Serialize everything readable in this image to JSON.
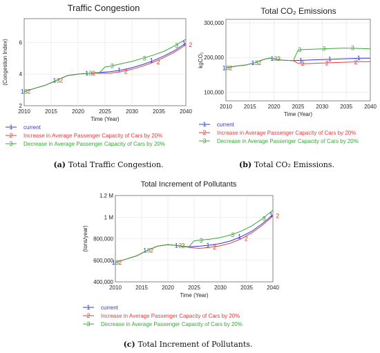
{
  "colors": {
    "current": "#3333dd",
    "increase": "#e83a3a",
    "decrease": "#3aa53a",
    "axis": "#666666",
    "grid": "#e2e2e2"
  },
  "legend": [
    {
      "marker": "1",
      "label": "current",
      "color": "#3333dd"
    },
    {
      "marker": "2",
      "label": "Increase in Average Passenger Capacity of Cars by 20%",
      "color": "#e83a3a"
    },
    {
      "marker": "3",
      "label": "Decrease in Average Passenger Capacity of Cars by 20%",
      "color": "#3aa53a"
    }
  ],
  "captions": {
    "a": {
      "tag": "(a)",
      "text": "Total Traffic Congestion."
    },
    "b": {
      "tag": "(b)",
      "text": "Total CO₂ Emissions."
    },
    "c": {
      "tag": "(c)",
      "text": "Total Increment of Pollutants."
    }
  },
  "chart_data": [
    {
      "id": "a",
      "type": "line",
      "title": "Traffic Congestion",
      "xlabel": "Time (Year)",
      "ylabel": "(Congestion Index)",
      "xlim": [
        2010,
        2040
      ],
      "ylim": [
        2,
        7.5
      ],
      "xticks": [
        2010,
        2015,
        2020,
        2025,
        2030,
        2035,
        2040
      ],
      "yticks": [
        {
          "v": 2,
          "t": "2"
        },
        {
          "v": 4,
          "t": "4"
        },
        {
          "v": 6,
          "t": "6"
        }
      ],
      "grid": true,
      "series": [
        {
          "name": "current",
          "marker": "1",
          "x": [
            2010,
            2012,
            2014,
            2016,
            2018,
            2020,
            2022,
            2024,
            2026,
            2028,
            2030,
            2032,
            2034,
            2036,
            2038,
            2040
          ],
          "y": [
            2.9,
            3.1,
            3.3,
            3.6,
            3.9,
            4.0,
            4.05,
            4.1,
            4.15,
            4.25,
            4.4,
            4.6,
            4.85,
            5.15,
            5.5,
            5.95
          ]
        },
        {
          "name": "Increase in Average Passenger Capacity of Cars by 20%",
          "marker": "2",
          "x": [
            2010,
            2012,
            2014,
            2016,
            2018,
            2020,
            2022,
            2024,
            2026,
            2028,
            2030,
            2032,
            2034,
            2036,
            2038,
            2040
          ],
          "y": [
            2.9,
            3.1,
            3.3,
            3.6,
            3.9,
            4.0,
            4.05,
            4.05,
            4.05,
            4.15,
            4.3,
            4.5,
            4.75,
            5.05,
            5.4,
            5.85
          ]
        },
        {
          "name": "Decrease in Average Passenger Capacity of Cars by 20%",
          "marker": "3",
          "x": [
            2010,
            2012,
            2014,
            2016,
            2018,
            2020,
            2022,
            2024,
            2025,
            2026,
            2028,
            2030,
            2032,
            2034,
            2036,
            2038,
            2040
          ],
          "y": [
            2.9,
            3.1,
            3.3,
            3.6,
            3.9,
            4.0,
            4.05,
            4.1,
            4.45,
            4.5,
            4.65,
            4.8,
            5.0,
            5.2,
            5.45,
            5.8,
            6.2
          ]
        }
      ]
    },
    {
      "id": "b",
      "type": "line",
      "title": "Total CO₂ Emissions",
      "xlabel": "Time (Year)",
      "ylabel": "kgCO₂",
      "xlim": [
        2010,
        2040
      ],
      "ylim": [
        75000,
        310000
      ],
      "xticks": [
        2010,
        2015,
        2020,
        2025,
        2030,
        2035,
        2040
      ],
      "yticks": [
        {
          "v": 100000,
          "t": "100,000"
        },
        {
          "v": 200000,
          "t": "200,000"
        },
        {
          "v": 300000,
          "t": "300,000"
        }
      ],
      "grid": true,
      "series": [
        {
          "name": "current",
          "marker": "1",
          "x": [
            2010,
            2012,
            2014,
            2016,
            2018,
            2019,
            2020,
            2022,
            2024,
            2026,
            2028,
            2030,
            2032,
            2034,
            2036,
            2038,
            2040
          ],
          "y": [
            170000,
            175000,
            178000,
            185000,
            195000,
            198000,
            196000,
            192000,
            191000,
            192000,
            193000,
            194000,
            195000,
            196000,
            197000,
            198000,
            198000
          ]
        },
        {
          "name": "Increase in Average Passenger Capacity of Cars by 20%",
          "marker": "2",
          "x": [
            2010,
            2012,
            2014,
            2016,
            2018,
            2019,
            2020,
            2022,
            2024,
            2025,
            2026,
            2028,
            2030,
            2032,
            2034,
            2036,
            2038,
            2040
          ],
          "y": [
            170000,
            175000,
            178000,
            185000,
            195000,
            198000,
            196000,
            192000,
            191000,
            183000,
            182000,
            183000,
            184000,
            185000,
            186000,
            187000,
            188000,
            188000
          ]
        },
        {
          "name": "Decrease in Average Passenger Capacity of Cars by 20%",
          "marker": "3",
          "x": [
            2010,
            2012,
            2014,
            2016,
            2018,
            2019,
            2020,
            2022,
            2024,
            2025,
            2026,
            2028,
            2030,
            2032,
            2034,
            2036,
            2038,
            2040
          ],
          "y": [
            170000,
            175000,
            178000,
            185000,
            195000,
            198000,
            196000,
            192000,
            191000,
            222000,
            223000,
            224000,
            225000,
            226000,
            227000,
            227000,
            226000,
            225000
          ]
        }
      ]
    },
    {
      "id": "c",
      "type": "line",
      "title": "Total Increment of Pollutants",
      "xlabel": "Time (Year)",
      "ylabel": "(tons/year)",
      "xlim": [
        2010,
        2040
      ],
      "ylim": [
        400000,
        1200000
      ],
      "xticks": [
        2010,
        2015,
        2020,
        2025,
        2030,
        2035,
        2040
      ],
      "yticks": [
        {
          "v": 400000,
          "t": "400,000"
        },
        {
          "v": 600000,
          "t": "600,000"
        },
        {
          "v": 800000,
          "t": "800,000"
        },
        {
          "v": 1000000,
          "t": "1 M"
        },
        {
          "v": 1200000,
          "t": "1.2 M"
        }
      ],
      "grid": true,
      "series": [
        {
          "name": "current",
          "marker": "1",
          "x": [
            2010,
            2012,
            2014,
            2016,
            2018,
            2020,
            2022,
            2024,
            2026,
            2028,
            2030,
            2032,
            2034,
            2036,
            2038,
            2040
          ],
          "y": [
            580000,
            610000,
            640000,
            690000,
            730000,
            745000,
            735000,
            725000,
            730000,
            740000,
            755000,
            780000,
            820000,
            870000,
            940000,
            1020000
          ]
        },
        {
          "name": "Increase in Average Passenger Capacity of Cars by 20%",
          "marker": "2",
          "x": [
            2010,
            2012,
            2014,
            2016,
            2018,
            2020,
            2022,
            2024,
            2026,
            2028,
            2030,
            2032,
            2034,
            2036,
            2038,
            2040
          ],
          "y": [
            580000,
            610000,
            640000,
            690000,
            730000,
            745000,
            735000,
            720000,
            710000,
            720000,
            735000,
            760000,
            800000,
            855000,
            925000,
            1010000
          ]
        },
        {
          "name": "Decrease in Average Passenger Capacity of Cars by 20%",
          "marker": "3",
          "x": [
            2010,
            2012,
            2014,
            2016,
            2018,
            2020,
            2022,
            2024,
            2025,
            2026,
            2028,
            2030,
            2032,
            2034,
            2036,
            2038,
            2040
          ],
          "y": [
            580000,
            610000,
            640000,
            690000,
            730000,
            745000,
            735000,
            725000,
            780000,
            785000,
            795000,
            810000,
            835000,
            870000,
            920000,
            985000,
            1065000
          ]
        }
      ]
    }
  ]
}
